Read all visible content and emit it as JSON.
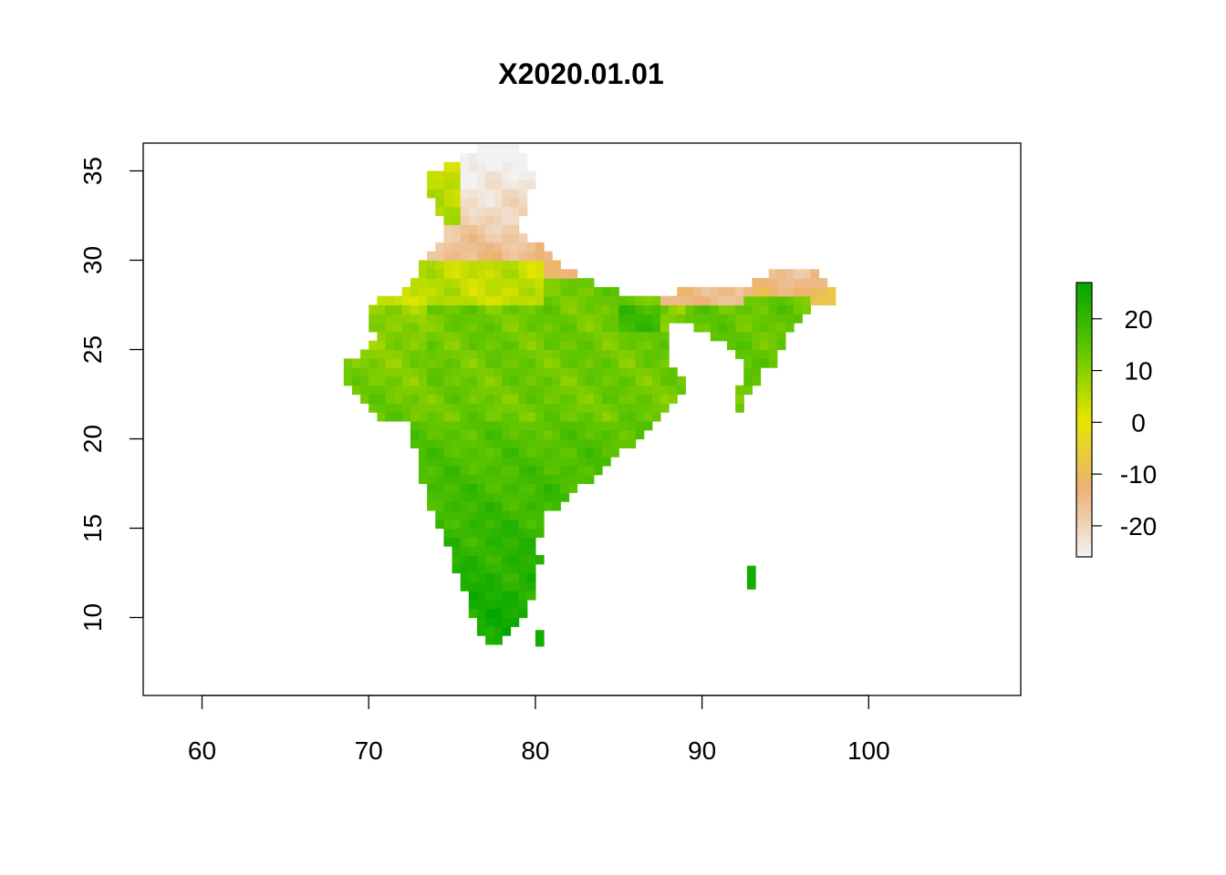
{
  "title": "X2020.01.01",
  "chart_data": {
    "type": "heatmap",
    "title": "X2020.01.01",
    "xlabel": "",
    "ylabel": "",
    "xlim": [
      56.5,
      108.8
    ],
    "ylim": [
      5.6,
      36.5
    ],
    "x_ticks": [
      "60",
      "70",
      "80",
      "90",
      "100"
    ],
    "y_ticks": [
      "10",
      "15",
      "20",
      "25",
      "30",
      "35"
    ],
    "legend": {
      "position": "right",
      "range": [
        -26,
        27
      ],
      "ticks": [
        "20",
        "10",
        "0",
        "-10",
        "-20"
      ],
      "colors": [
        "#f2f2f2",
        "#ecb176",
        "#e6e600",
        "#63c600",
        "#00a600"
      ]
    },
    "cell_size_deg": 0.5,
    "regions": [
      {
        "lon": [
          70,
          82
        ],
        "lat": [
          21,
          29
        ],
        "mean_value": 8
      },
      {
        "lon": [
          75,
          80
        ],
        "lat": [
          9,
          17
        ],
        "mean_value": 20
      },
      {
        "lon": [
          74.5,
          81
        ],
        "lat": [
          31,
          36.5
        ],
        "mean_value": -20
      },
      {
        "lon": [
          87.5,
          98
        ],
        "lat": [
          27.5,
          30
        ],
        "mean_value": -14
      },
      {
        "lon": [
          91,
          97
        ],
        "lat": [
          21.5,
          27
        ],
        "mean_value": 13
      },
      {
        "lon": [
          68,
          73
        ],
        "lat": [
          23,
          28.5
        ],
        "mean_value": 3
      }
    ]
  }
}
